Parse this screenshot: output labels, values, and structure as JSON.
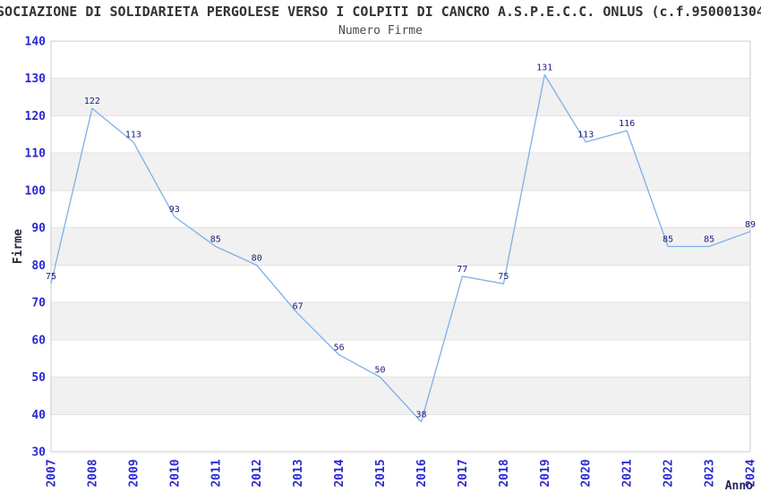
{
  "chart_data": {
    "type": "line",
    "title": "SOCIAZIONE DI SOLIDARIETA PERGOLESE VERSO I COLPITI DI CANCRO A.S.P.E.C.C. ONLUS (c.f.950001304",
    "subtitle": "Numero Firme",
    "xlabel": "Anno",
    "ylabel": "Firme",
    "categories": [
      "2007",
      "2008",
      "2009",
      "2010",
      "2011",
      "2012",
      "2013",
      "2014",
      "2015",
      "2016",
      "2017",
      "2018",
      "2019",
      "2020",
      "2021",
      "2022",
      "2023",
      "2024"
    ],
    "values": [
      75,
      122,
      113,
      93,
      85,
      80,
      67,
      56,
      50,
      38,
      77,
      75,
      131,
      113,
      116,
      85,
      85,
      89
    ],
    "ylim": [
      30,
      140
    ],
    "ytick_step": 10,
    "grid": "horizontal-bands",
    "legend": "none",
    "colors": {
      "line": "#7db0e8",
      "tick_label": "#2a2ad0",
      "data_label": "#1a1a7e",
      "axis_title_x": "#24245c",
      "axis_title_y": "#2a2a3a",
      "band": "#f1f1f1",
      "gridline": "#e2e2e2",
      "plot_border": "#cccccc",
      "title": "#333333",
      "subtitle": "#4a4a4a",
      "background": "#ffffff"
    }
  }
}
